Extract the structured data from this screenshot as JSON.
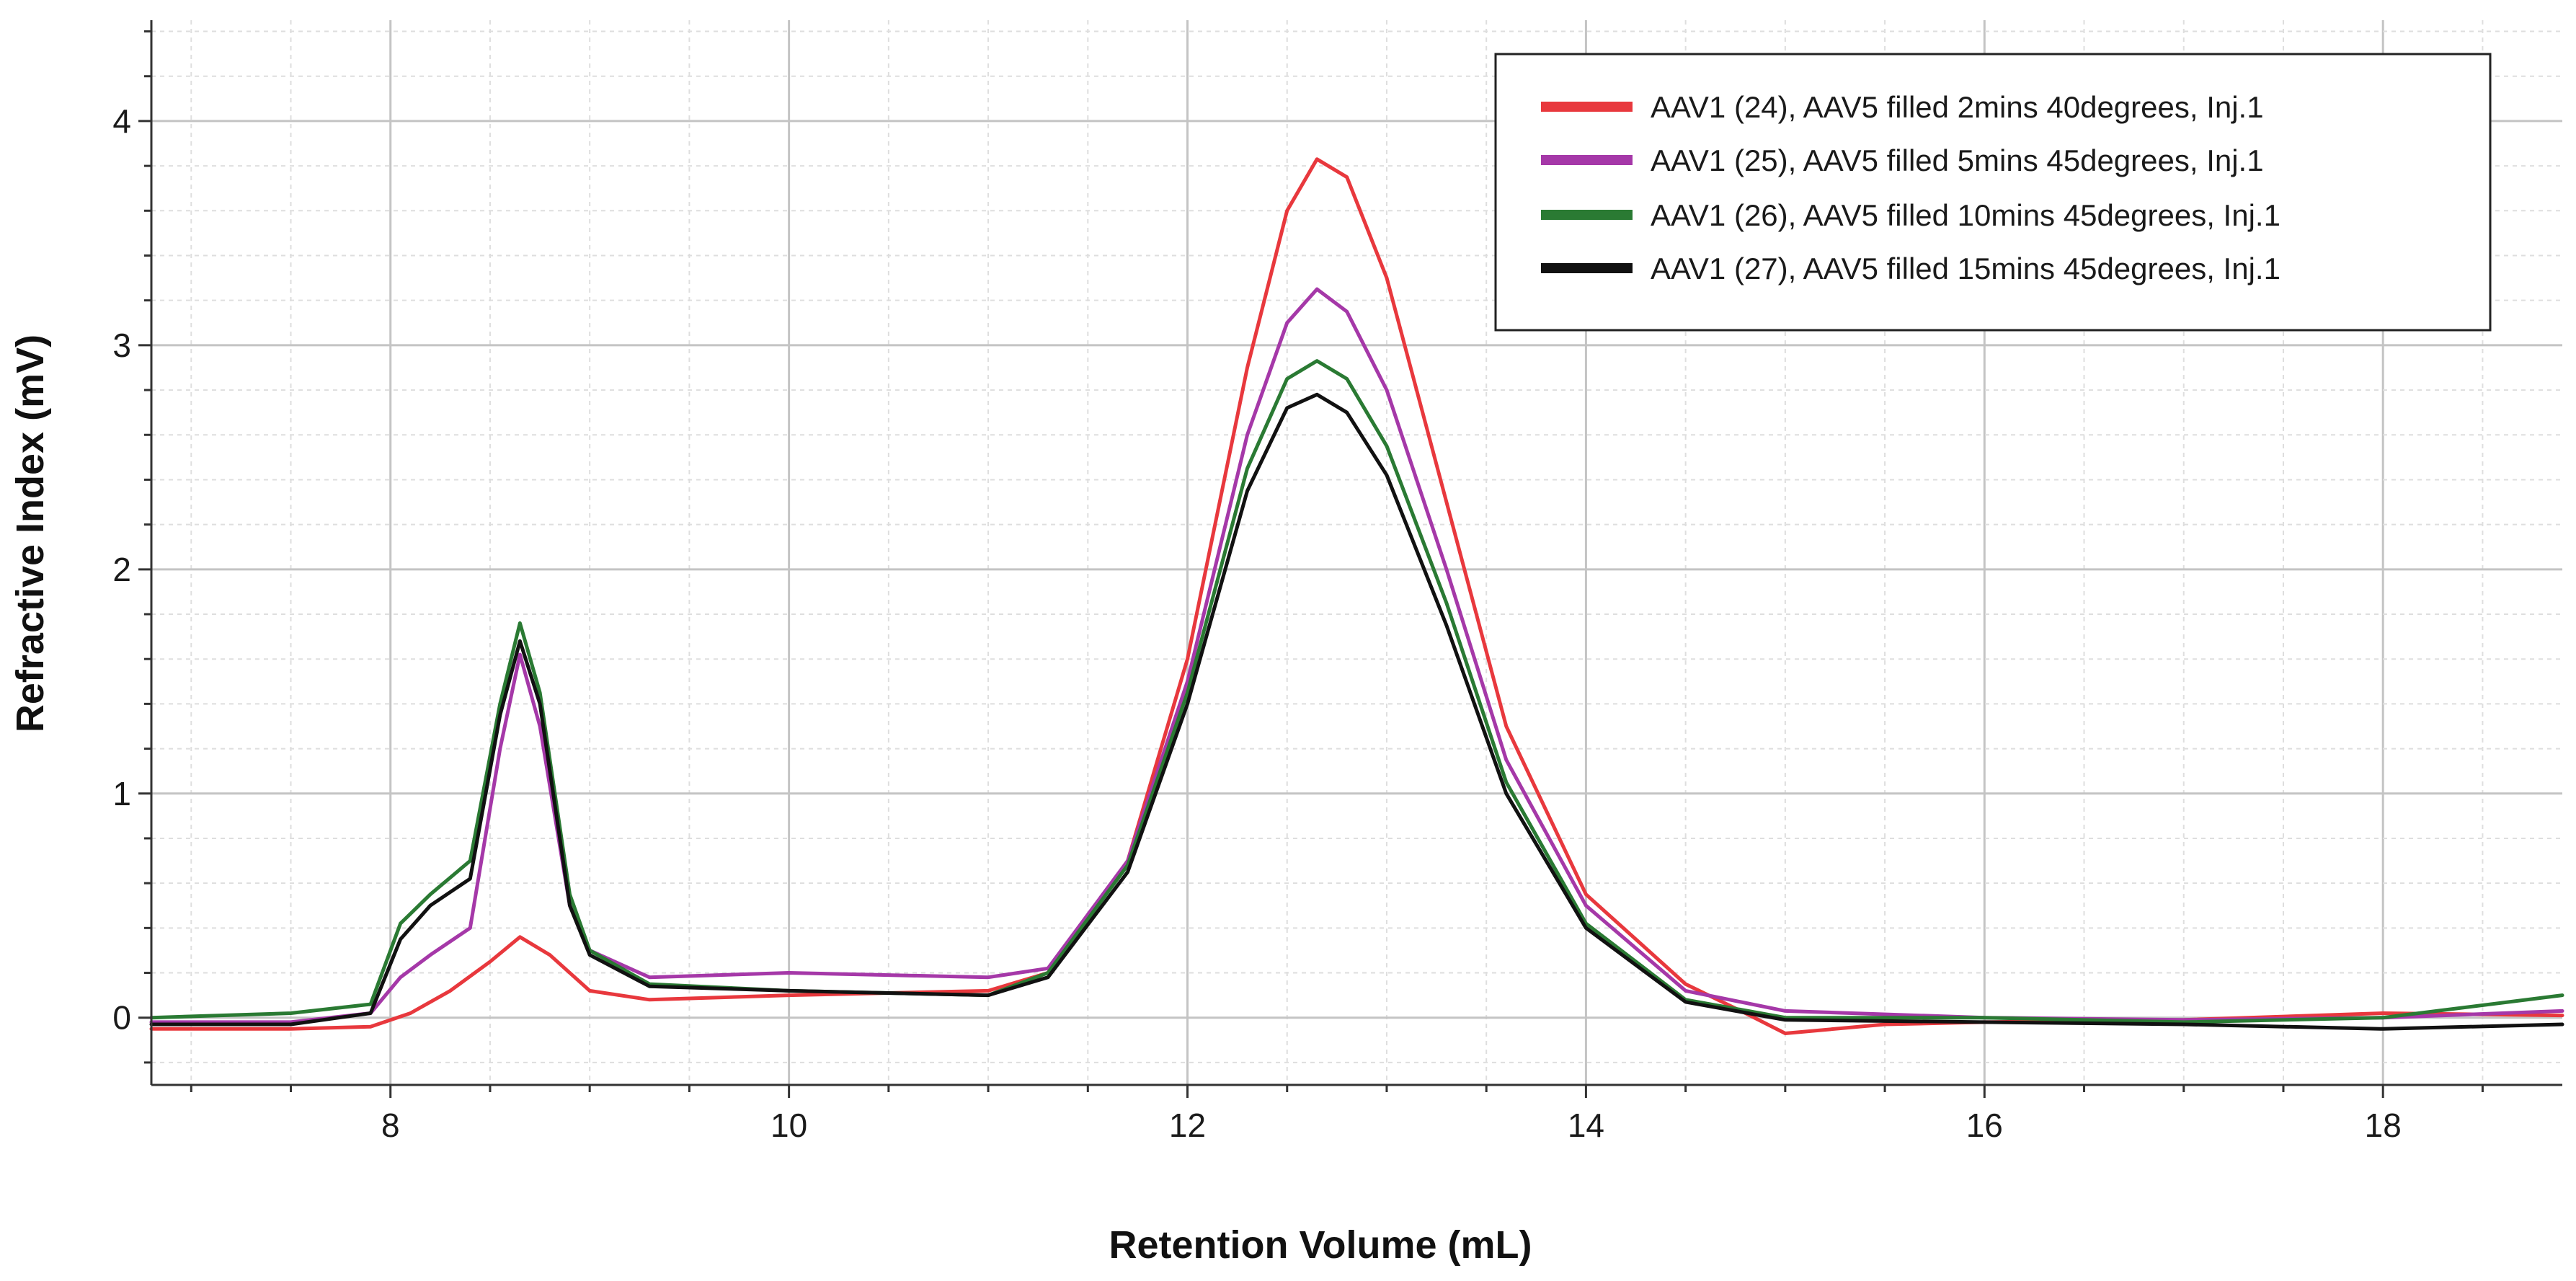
{
  "chart_data": {
    "type": "line",
    "title": "",
    "xlabel": "Retention Volume (mL)",
    "ylabel": "Refractive Index (mV)",
    "xlim": [
      6.8,
      18.9
    ],
    "ylim": [
      -0.3,
      4.45
    ],
    "x_ticks": [
      8,
      10,
      12,
      14,
      16,
      18
    ],
    "x_tick_labels": [
      "8",
      "10",
      "12",
      "14",
      "16",
      "18"
    ],
    "y_ticks": [
      0,
      1,
      2,
      3,
      4
    ],
    "y_tick_labels": [
      "0",
      "1",
      "2",
      "3",
      "4"
    ],
    "grid": true,
    "legend_position": "top-right",
    "series": [
      {
        "name": "AAV1 (24), AAV5 filled 2mins 40degrees, Inj.1",
        "color": "#e8383d",
        "x": [
          6.8,
          7.5,
          7.9,
          8.1,
          8.3,
          8.5,
          8.65,
          8.8,
          9.0,
          9.3,
          10.0,
          11.0,
          11.3,
          11.7,
          12.0,
          12.3,
          12.5,
          12.65,
          12.8,
          13.0,
          13.3,
          13.6,
          14.0,
          14.5,
          14.8,
          15.0,
          15.5,
          16.0,
          17.0,
          18.0,
          18.9
        ],
        "y": [
          -0.05,
          -0.05,
          -0.04,
          0.02,
          0.12,
          0.25,
          0.36,
          0.28,
          0.12,
          0.08,
          0.1,
          0.12,
          0.2,
          0.7,
          1.6,
          2.9,
          3.6,
          3.83,
          3.75,
          3.3,
          2.3,
          1.3,
          0.55,
          0.15,
          0.02,
          -0.07,
          -0.03,
          -0.02,
          -0.01,
          0.02,
          0.01
        ]
      },
      {
        "name": "AAV1 (25), AAV5 filled 5mins 45degrees, Inj.1",
        "color": "#a538a8",
        "x": [
          6.8,
          7.5,
          7.9,
          8.05,
          8.2,
          8.4,
          8.55,
          8.65,
          8.75,
          8.9,
          9.0,
          9.3,
          10.0,
          11.0,
          11.3,
          11.7,
          12.0,
          12.3,
          12.5,
          12.65,
          12.8,
          13.0,
          13.3,
          13.6,
          14.0,
          14.5,
          15.0,
          16.0,
          17.0,
          18.0,
          18.9
        ],
        "y": [
          -0.02,
          -0.02,
          0.02,
          0.18,
          0.28,
          0.4,
          1.2,
          1.62,
          1.3,
          0.5,
          0.3,
          0.18,
          0.2,
          0.18,
          0.22,
          0.7,
          1.5,
          2.6,
          3.1,
          3.25,
          3.15,
          2.8,
          2.0,
          1.15,
          0.5,
          0.12,
          0.03,
          0.0,
          -0.01,
          0.0,
          0.03
        ]
      },
      {
        "name": "AAV1 (26), AAV5 filled 10mins 45degrees, Inj.1",
        "color": "#2a7a33",
        "x": [
          6.8,
          7.5,
          7.9,
          8.05,
          8.2,
          8.4,
          8.55,
          8.65,
          8.75,
          8.9,
          9.0,
          9.3,
          10.0,
          11.0,
          11.3,
          11.7,
          12.0,
          12.3,
          12.5,
          12.65,
          12.8,
          13.0,
          13.3,
          13.6,
          14.0,
          14.5,
          15.0,
          16.0,
          17.0,
          18.0,
          18.9
        ],
        "y": [
          0.0,
          0.02,
          0.06,
          0.42,
          0.55,
          0.7,
          1.4,
          1.76,
          1.45,
          0.55,
          0.3,
          0.15,
          0.12,
          0.1,
          0.2,
          0.68,
          1.45,
          2.45,
          2.85,
          2.93,
          2.85,
          2.55,
          1.85,
          1.05,
          0.42,
          0.08,
          0.0,
          0.0,
          -0.02,
          0.0,
          0.1
        ]
      },
      {
        "name": "AAV1 (27), AAV5 filled 15mins 45degrees, Inj.1",
        "color": "#111111",
        "x": [
          6.8,
          7.5,
          7.9,
          8.05,
          8.2,
          8.4,
          8.55,
          8.65,
          8.75,
          8.9,
          9.0,
          9.3,
          10.0,
          11.0,
          11.3,
          11.7,
          12.0,
          12.3,
          12.5,
          12.65,
          12.8,
          13.0,
          13.3,
          13.6,
          14.0,
          14.5,
          15.0,
          16.0,
          17.0,
          18.0,
          18.9
        ],
        "y": [
          -0.03,
          -0.03,
          0.02,
          0.35,
          0.5,
          0.62,
          1.35,
          1.68,
          1.4,
          0.5,
          0.28,
          0.14,
          0.12,
          0.1,
          0.18,
          0.65,
          1.4,
          2.35,
          2.72,
          2.78,
          2.7,
          2.42,
          1.75,
          1.0,
          0.4,
          0.07,
          -0.01,
          -0.02,
          -0.03,
          -0.05,
          -0.03
        ]
      }
    ]
  }
}
